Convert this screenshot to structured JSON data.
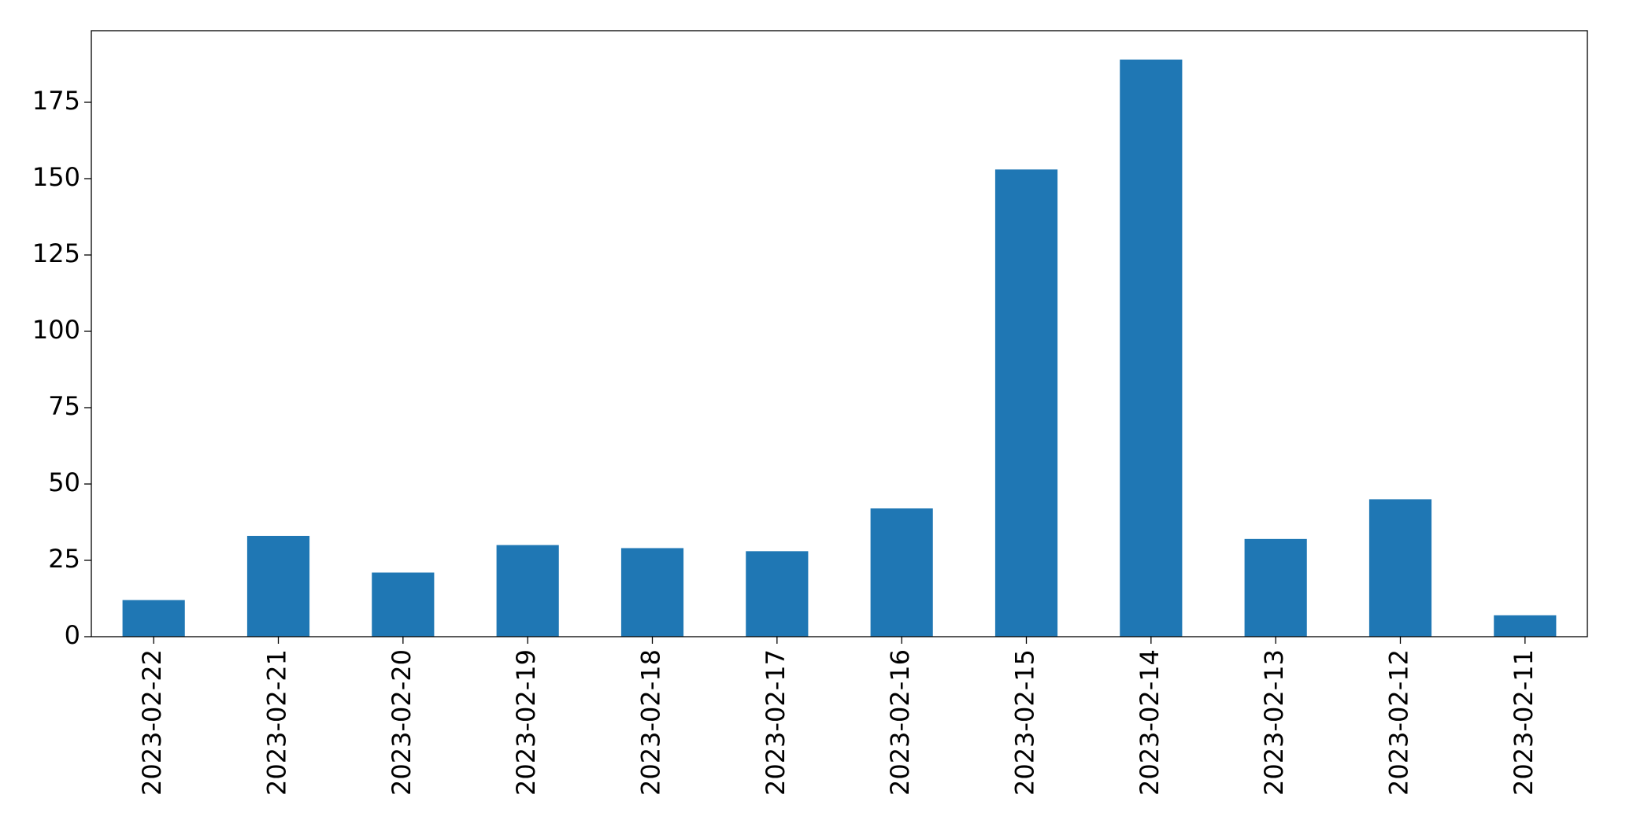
{
  "chart_data": {
    "type": "bar",
    "categories": [
      "2023-02-22",
      "2023-02-21",
      "2023-02-20",
      "2023-02-19",
      "2023-02-18",
      "2023-02-17",
      "2023-02-16",
      "2023-02-15",
      "2023-02-14",
      "2023-02-13",
      "2023-02-12",
      "2023-02-11"
    ],
    "values": [
      12,
      33,
      21,
      30,
      29,
      28,
      42,
      153,
      189,
      32,
      45,
      7
    ],
    "color": "#1f77b4",
    "ylim": [
      0,
      198.45
    ],
    "yticks": [
      0,
      25,
      50,
      75,
      100,
      125,
      150,
      175
    ],
    "grid": false
  }
}
